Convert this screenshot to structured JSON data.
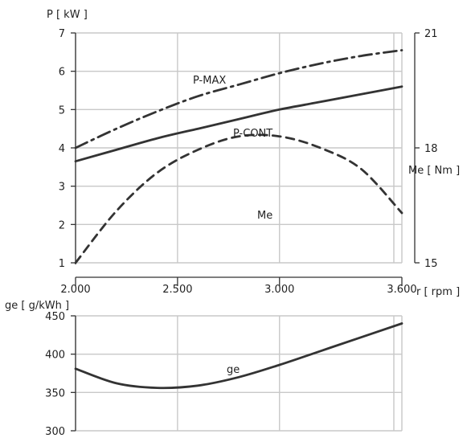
{
  "chart_data": [
    {
      "type": "line",
      "title": "",
      "xlabel": "r [ rpm ]",
      "ylabel": "P [ kW ]",
      "y2label": "Me [ Nm ]",
      "xlim": [
        2000,
        3600
      ],
      "ylim": [
        1,
        7
      ],
      "y2lim": [
        15,
        21
      ],
      "x_ticks": [
        "2.000",
        "2.500",
        "3.000",
        "3.600"
      ],
      "y_ticks": [
        "1",
        "2",
        "3",
        "4",
        "5",
        "6",
        "7"
      ],
      "y2_ticks": [
        "15",
        "18",
        "21"
      ],
      "grid": true,
      "series": [
        {
          "name": "P-MAX",
          "style": "dashdot",
          "axis": "left",
          "x": [
            2000,
            2200,
            2400,
            2600,
            2800,
            3000,
            3200,
            3400,
            3600
          ],
          "y": [
            4.0,
            4.5,
            4.95,
            5.35,
            5.65,
            5.95,
            6.2,
            6.4,
            6.55
          ]
        },
        {
          "name": "P-CONT",
          "style": "solid",
          "axis": "left",
          "x": [
            2000,
            2200,
            2400,
            2600,
            2800,
            3000,
            3200,
            3400,
            3600
          ],
          "y": [
            3.65,
            3.95,
            4.25,
            4.5,
            4.75,
            5.0,
            5.2,
            5.4,
            5.6
          ]
        },
        {
          "name": "Me",
          "style": "dashed",
          "axis": "right",
          "x": [
            2000,
            2200,
            2400,
            2600,
            2800,
            3000,
            3200,
            3400,
            3600
          ],
          "y": [
            15.0,
            16.35,
            17.35,
            17.95,
            18.3,
            18.3,
            18.0,
            17.45,
            16.3
          ]
        }
      ]
    },
    {
      "type": "line",
      "title": "",
      "xlabel": "",
      "ylabel": "ge [ g/kWh ]",
      "xlim": [
        2000,
        3600
      ],
      "ylim": [
        300,
        450
      ],
      "y_ticks": [
        "300",
        "350",
        "400",
        "450"
      ],
      "grid": true,
      "series": [
        {
          "name": "ge",
          "style": "solid",
          "axis": "left",
          "x": [
            2000,
            2200,
            2400,
            2600,
            2800,
            3000,
            3200,
            3400,
            3600
          ],
          "y": [
            381,
            362,
            356,
            359,
            370,
            386,
            404,
            422,
            440
          ]
        }
      ]
    }
  ],
  "labels": {
    "p_axis": "P [ kW ]",
    "me_axis": "Me [ Nm ]",
    "rpm_axis": "r [ rpm ]",
    "ge_axis": "ge [ g/kWh ]",
    "pmax": "P-MAX",
    "pcont": "P-CONT",
    "me": "Me",
    "ge": "ge"
  }
}
